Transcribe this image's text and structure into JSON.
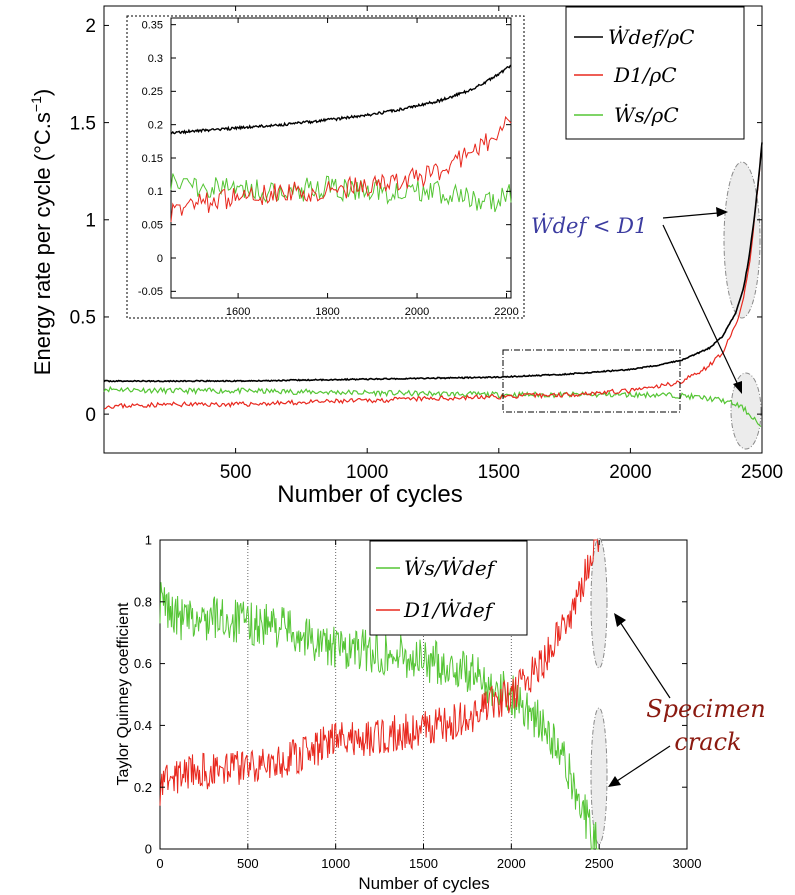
{
  "colors": {
    "black_series": "#000000",
    "red_series": "#e8281e",
    "green_series": "#55c535",
    "annotation_blue": "#3c3ca0",
    "annotation_darkred": "#8b1a10",
    "highlight_fill": "#ececec"
  },
  "top_chart": {
    "xlabel": "Number of cycles",
    "ylabel": "Energy rate per cycle (°C.s",
    "ylabel_sup": "−1",
    "ylabel_close": ")",
    "xlim": [
      0,
      2500
    ],
    "ylim": [
      -0.2,
      2.1
    ],
    "xticks": [
      "500",
      "1000",
      "1500",
      "2000",
      "2500"
    ],
    "yticks": [
      "0",
      "0.5",
      "1",
      "1.5",
      "2"
    ],
    "legend": [
      "Ẇdef/ρC",
      "D1/ρC",
      "Ẇs/ρC"
    ],
    "annotation": "Ẇdef < D1",
    "inset": {
      "xlim": [
        1450,
        2210
      ],
      "ylim": [
        -0.06,
        0.36
      ],
      "xticks": [
        "1600",
        "1800",
        "2000",
        "2200"
      ],
      "yticks": [
        "-0.05",
        "0",
        "0.05",
        "0.1",
        "0.15",
        "0.2",
        "0.25",
        "0.3",
        "0.35"
      ]
    }
  },
  "bottom_chart": {
    "xlabel": "Number of cycles",
    "ylabel": "Taylor Quinney coefficient",
    "xlim": [
      0,
      3000
    ],
    "ylim": [
      0,
      1
    ],
    "xticks": [
      "0",
      "500",
      "1000",
      "1500",
      "2000",
      "2500",
      "3000"
    ],
    "yticks": [
      "0",
      "0.2",
      "0.4",
      "0.6",
      "0.8",
      "1"
    ],
    "legend": [
      "Ẇs/Ẇdef",
      "D1/Ẇdef"
    ],
    "annotation_line1": "Specimen",
    "annotation_line2": "crack"
  },
  "chart_data": [
    {
      "type": "line",
      "xlabel": "Number of cycles",
      "ylabel": "Energy rate per cycle (°C.s−1)",
      "xlim": [
        0,
        2500
      ],
      "ylim": [
        -0.2,
        2.1
      ],
      "legend_position": "top-right",
      "series": [
        {
          "name": "Ẇdef/ρC",
          "color": "#000000",
          "x": [
            0,
            250,
            500,
            750,
            1000,
            1250,
            1500,
            1750,
            2000,
            2100,
            2200,
            2300,
            2350,
            2400,
            2430,
            2450,
            2470,
            2490,
            2500
          ],
          "y": [
            0.17,
            0.17,
            0.17,
            0.175,
            0.18,
            0.185,
            0.19,
            0.205,
            0.23,
            0.25,
            0.28,
            0.34,
            0.4,
            0.52,
            0.65,
            0.8,
            1.0,
            1.25,
            1.4
          ]
        },
        {
          "name": "D1/ρC",
          "color": "#e8281e",
          "x": [
            0,
            250,
            500,
            750,
            1000,
            1250,
            1500,
            1750,
            2000,
            2100,
            2200,
            2300,
            2350,
            2400,
            2430,
            2450,
            2470,
            2490,
            2500
          ],
          "y": [
            0.04,
            0.05,
            0.05,
            0.06,
            0.07,
            0.08,
            0.09,
            0.1,
            0.12,
            0.14,
            0.17,
            0.25,
            0.32,
            0.45,
            0.6,
            0.75,
            0.98,
            1.25,
            1.4
          ]
        },
        {
          "name": "Ẇs/ρC",
          "color": "#55c535",
          "x": [
            0,
            250,
            500,
            750,
            1000,
            1250,
            1500,
            1750,
            2000,
            2100,
            2200,
            2300,
            2350,
            2400,
            2430,
            2450,
            2470,
            2490,
            2500
          ],
          "y": [
            0.13,
            0.12,
            0.12,
            0.115,
            0.11,
            0.105,
            0.1,
            0.1,
            0.1,
            0.1,
            0.095,
            0.08,
            0.07,
            0.05,
            0.03,
            0.0,
            -0.02,
            -0.06,
            -0.08
          ]
        }
      ],
      "annotations": [
        "Ẇdef < D1"
      ]
    },
    {
      "type": "line",
      "title": "",
      "xlim": [
        1450,
        2210
      ],
      "ylim": [
        -0.06,
        0.36
      ],
      "series": [
        {
          "name": "Ẇdef/ρC",
          "x": [
            1450,
            1500,
            1600,
            1700,
            1800,
            1900,
            2000,
            2050,
            2100,
            2150,
            2200,
            2210
          ],
          "y": [
            0.188,
            0.19,
            0.195,
            0.2,
            0.207,
            0.215,
            0.228,
            0.236,
            0.247,
            0.262,
            0.284,
            0.29
          ]
        },
        {
          "name": "D1/ρC",
          "x": [
            1450,
            1500,
            1600,
            1700,
            1800,
            1900,
            2000,
            2050,
            2100,
            2150,
            2200,
            2210
          ],
          "y": [
            0.07,
            0.08,
            0.09,
            0.1,
            0.1,
            0.11,
            0.12,
            0.13,
            0.15,
            0.17,
            0.2,
            0.2
          ]
        },
        {
          "name": "Ẇs/ρC",
          "x": [
            1450,
            1500,
            1600,
            1700,
            1800,
            1900,
            2000,
            2050,
            2100,
            2150,
            2200,
            2210
          ],
          "y": [
            0.12,
            0.11,
            0.105,
            0.1,
            0.105,
            0.1,
            0.1,
            0.1,
            0.09,
            0.08,
            0.09,
            0.1
          ]
        }
      ]
    },
    {
      "type": "line",
      "xlabel": "Number of cycles",
      "ylabel": "Taylor Quinney coefficient",
      "xlim": [
        0,
        3000
      ],
      "ylim": [
        0,
        1
      ],
      "legend_position": "top-center",
      "series": [
        {
          "name": "Ẇs/Ẇdef",
          "color": "#55c535",
          "x": [
            0,
            100,
            200,
            300,
            500,
            700,
            900,
            1000,
            1200,
            1400,
            1600,
            1800,
            2000,
            2100,
            2200,
            2300,
            2400,
            2450,
            2500
          ],
          "y": [
            0.8,
            0.75,
            0.73,
            0.75,
            0.73,
            0.72,
            0.67,
            0.65,
            0.64,
            0.62,
            0.6,
            0.56,
            0.5,
            0.45,
            0.38,
            0.28,
            0.15,
            0.05,
            0.0
          ]
        },
        {
          "name": "D1/Ẇdef",
          "color": "#e8281e",
          "x": [
            0,
            100,
            200,
            300,
            500,
            700,
            900,
            1000,
            1200,
            1400,
            1600,
            1800,
            2000,
            2100,
            2200,
            2300,
            2400,
            2450,
            2500
          ],
          "y": [
            0.2,
            0.24,
            0.26,
            0.25,
            0.27,
            0.28,
            0.33,
            0.35,
            0.36,
            0.38,
            0.4,
            0.44,
            0.5,
            0.55,
            0.62,
            0.72,
            0.85,
            0.95,
            1.0
          ]
        }
      ],
      "annotations": [
        "Specimen crack"
      ]
    }
  ]
}
